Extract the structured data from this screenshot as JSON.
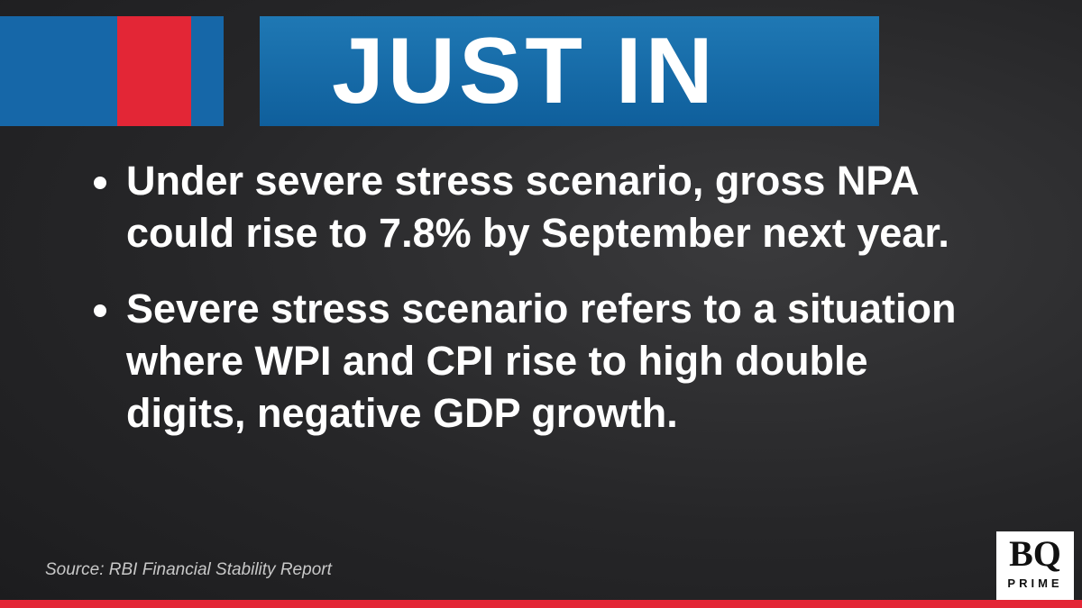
{
  "header": {
    "title": "JUST IN"
  },
  "bullets": [
    "Under severe stress scenario, gross NPA could rise to 7.8% by September next year.",
    "Severe stress scenario refers to a situation where WPI and CPI rise to high double digits, negative GDP growth."
  ],
  "source": "Source: RBI Financial Stability Report",
  "logo": {
    "top": "BQ",
    "bottom": "PRIME"
  }
}
